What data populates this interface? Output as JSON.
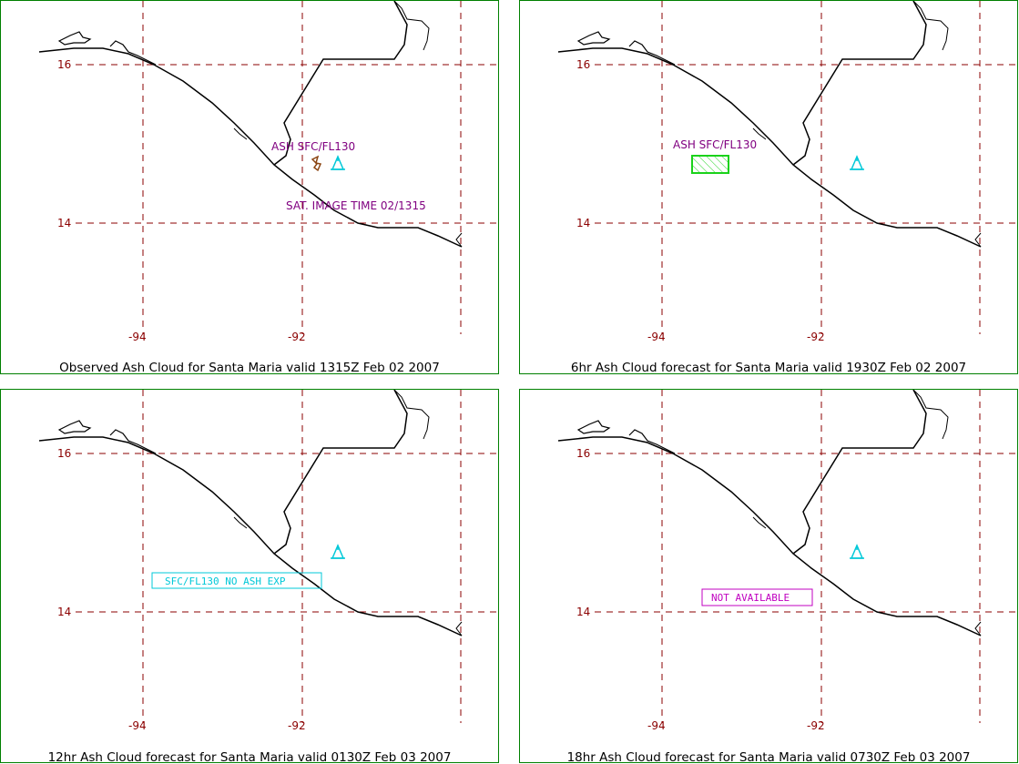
{
  "colors": {
    "grid": "#8b0000",
    "label": "#800080",
    "volcano": "#00c8d8",
    "ash_forecast": "#1ad21a",
    "ash_observed": "#8b4513",
    "no_ash_box": "#00c8d8",
    "not_available_box": "#c000c0",
    "border": "#008000"
  },
  "axes": {
    "lat_labels": [
      "16",
      "14"
    ],
    "lon_labels": [
      "-94",
      "-92"
    ]
  },
  "panels": [
    {
      "caption": "Observed Ash Cloud for Santa  Maria valid 1315Z Feb 02 2007",
      "ash_label": "ASH SFC/FL130",
      "sat_time": "SAT. IMAGE TIME  02/1315",
      "volcano_icon": "triangle-volcano-icon",
      "ash_shape": "observed-polygon"
    },
    {
      "caption": "6hr Ash Cloud forecast for Santa  Maria valid 1930Z Feb 02 2007",
      "ash_label": "ASH SFC/FL130",
      "volcano_icon": "triangle-volcano-icon",
      "ash_shape": "forecast-hatched-box"
    },
    {
      "caption": "12hr Ash Cloud forecast for Santa  Maria valid 0130Z Feb 03 2007",
      "box_text": "SFC/FL130 NO ASH EXP",
      "volcano_icon": "triangle-volcano-icon"
    },
    {
      "caption": "18hr Ash Cloud forecast for Santa  Maria valid 0730Z Feb 03 2007",
      "box_text": "NOT AVAILABLE",
      "volcano_icon": "triangle-volcano-icon"
    }
  ]
}
